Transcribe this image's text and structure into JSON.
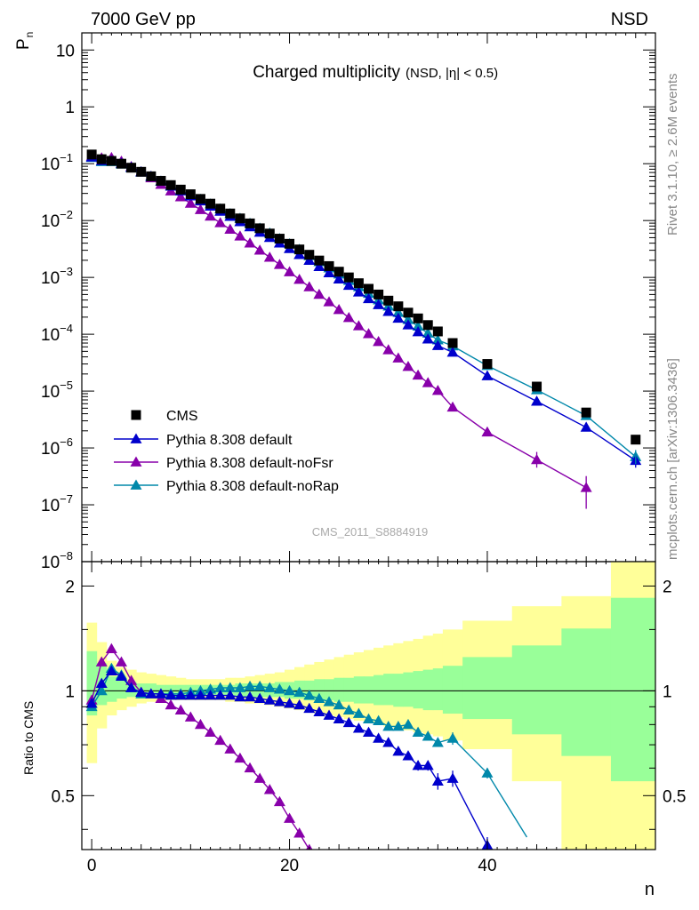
{
  "header": {
    "left": "7000 GeV pp",
    "right": "NSD"
  },
  "side": {
    "rivet": "Rivet 3.1.10, ≥ 2.6M events",
    "mcplots": "mcplots.cern.ch [arXiv:1306.3436]"
  },
  "colors": {
    "cms": "#000000",
    "default": "#0000cc",
    "noFsr": "#8800aa",
    "noRap": "#0088aa",
    "band_yellow": "#ffff99",
    "band_green": "#99ff99"
  },
  "chart_data": [
    {
      "type": "scatter",
      "title": "Charged multiplicity",
      "title_suffix": "(NSD, |η| < 0.5)",
      "ylabel": "P",
      "ylabel_sub": "n",
      "yscale": "log",
      "xlim": [
        -1,
        57
      ],
      "ylim": [
        1e-08,
        20
      ],
      "yticks": [
        "10",
        "1",
        "10^-1",
        "10^-2",
        "10^-3",
        "10^-4",
        "10^-5",
        "10^-6",
        "10^-7",
        "10^-8"
      ],
      "watermark": "CMS_2011_S8884919",
      "legend_position": "bottom-left",
      "series": [
        {
          "name": "CMS",
          "key": "cms",
          "marker": "square",
          "x": [
            0,
            1,
            2,
            3,
            4,
            5,
            6,
            7,
            8,
            9,
            10,
            11,
            12,
            13,
            14,
            15,
            16,
            17,
            18,
            19,
            20,
            21,
            22,
            23,
            24,
            25,
            26,
            27,
            28,
            29,
            30,
            31,
            32,
            33,
            34,
            35,
            36.5,
            40,
            45,
            50,
            55
          ],
          "y": [
            0.145,
            0.12,
            0.112,
            0.1,
            0.085,
            0.072,
            0.06,
            0.05,
            0.042,
            0.035,
            0.029,
            0.024,
            0.0198,
            0.0162,
            0.0133,
            0.0109,
            0.0089,
            0.0073,
            0.0059,
            0.0048,
            0.0039,
            0.0031,
            0.0025,
            0.00198,
            0.00158,
            0.00126,
            0.001,
            0.00079,
            0.00063,
            0.0005,
            0.00039,
            0.00031,
            0.00024,
            0.00019,
            0.000145,
            0.000112,
            7e-05,
            3e-05,
            1.2e-05,
            4.2e-06,
            1.4e-06
          ]
        },
        {
          "name": "Pythia 8.308 default",
          "key": "default",
          "marker": "triangle",
          "x": [
            0,
            1,
            2,
            3,
            4,
            5,
            6,
            7,
            8,
            9,
            10,
            11,
            12,
            13,
            14,
            15,
            16,
            17,
            18,
            19,
            20,
            21,
            22,
            23,
            24,
            25,
            26,
            27,
            28,
            29,
            30,
            31,
            32,
            33,
            34,
            35,
            36.5,
            40,
            45,
            50,
            55
          ],
          "y": [
            0.13,
            0.112,
            0.112,
            0.101,
            0.086,
            0.072,
            0.06,
            0.049,
            0.04,
            0.033,
            0.027,
            0.022,
            0.0178,
            0.0145,
            0.0118,
            0.0095,
            0.0077,
            0.0062,
            0.005,
            0.004,
            0.0032,
            0.0025,
            0.00198,
            0.00154,
            0.0012,
            0.00093,
            0.00072,
            0.00055,
            0.00042,
            0.00033,
            0.00025,
            0.00019,
            0.000145,
            0.00011,
            8.2e-05,
            6.3e-05,
            4.8e-05,
            1.85e-05,
            6.6e-06,
            2.3e-06,
            6e-07
          ]
        },
        {
          "name": "Pythia 8.308 default-noFsr",
          "key": "noFsr",
          "marker": "triangle",
          "x": [
            0,
            1,
            2,
            3,
            4,
            5,
            6,
            7,
            8,
            9,
            10,
            11,
            12,
            13,
            14,
            15,
            16,
            17,
            18,
            19,
            20,
            21,
            22,
            23,
            24,
            25,
            26,
            27,
            28,
            29,
            30,
            31,
            32,
            33,
            34,
            35,
            36.5,
            40,
            45,
            50,
            55
          ],
          "y": [
            0.135,
            0.126,
            0.128,
            0.11,
            0.089,
            0.071,
            0.056,
            0.043,
            0.033,
            0.026,
            0.02,
            0.0155,
            0.0119,
            0.0091,
            0.007,
            0.0053,
            0.004,
            0.003,
            0.00225,
            0.00168,
            0.00125,
            0.00092,
            0.00068,
            0.0005,
            0.00037,
            0.00027,
            0.000195,
            0.00014,
            0.000102,
            7.4e-05,
            5.3e-05,
            3.8e-05,
            2.7e-05,
            1.9e-05,
            1.4e-05,
            1.02e-05,
            5.2e-06,
            1.9e-06,
            6.2e-07,
            2e-07,
            null
          ]
        },
        {
          "name": "Pythia 8.308 default-noRap",
          "key": "noRap",
          "marker": "triangle",
          "x": [
            0,
            1,
            2,
            3,
            4,
            5,
            6,
            7,
            8,
            9,
            10,
            11,
            12,
            13,
            14,
            15,
            16,
            17,
            18,
            19,
            20,
            21,
            22,
            23,
            24,
            25,
            26,
            27,
            28,
            29,
            30,
            31,
            32,
            33,
            34,
            35,
            36.5,
            40,
            45,
            50,
            55
          ],
          "y": [
            0.128,
            0.108,
            0.108,
            0.098,
            0.084,
            0.071,
            0.059,
            0.049,
            0.041,
            0.034,
            0.028,
            0.0235,
            0.0195,
            0.016,
            0.0132,
            0.0109,
            0.0089,
            0.0073,
            0.006,
            0.0048,
            0.0039,
            0.0031,
            0.0024,
            0.00188,
            0.00146,
            0.00114,
            0.00088,
            0.00068,
            0.00052,
            0.0004,
            0.00031,
            0.00024,
            0.00018,
            0.000138,
            0.000104,
            7.9e-05,
            6.2e-05,
            2.8e-05,
            1.05e-05,
            3.7e-06,
            7e-07
          ]
        }
      ]
    },
    {
      "type": "line",
      "ylabel": "Ratio to CMS",
      "xlabel": "n",
      "xlim": [
        -1,
        57
      ],
      "ylim": [
        0.35,
        2.35
      ],
      "xticks": [
        0,
        20,
        40
      ],
      "yticks": [
        0.5,
        1,
        2
      ],
      "band_edges": [
        -0.5,
        0.5,
        1.5,
        2.5,
        3.5,
        4.5,
        5.5,
        6.5,
        7.5,
        8.5,
        9.5,
        10.5,
        11.5,
        12.5,
        13.5,
        14.5,
        15.5,
        16.5,
        17.5,
        18.5,
        19.5,
        20.5,
        21.5,
        22.5,
        23.5,
        24.5,
        25.5,
        26.5,
        27.5,
        28.5,
        29.5,
        30.5,
        31.5,
        32.5,
        33.5,
        34.5,
        35.5,
        37.5,
        42.5,
        47.5,
        52.5,
        57.5
      ],
      "band_yellow": [
        [
          0.62,
          1.57
        ],
        [
          0.78,
          1.38
        ],
        [
          0.85,
          1.22
        ],
        [
          0.88,
          1.17
        ],
        [
          0.9,
          1.15
        ],
        [
          0.92,
          1.13
        ],
        [
          0.93,
          1.12
        ],
        [
          0.93,
          1.11
        ],
        [
          0.94,
          1.1
        ],
        [
          0.94,
          1.09
        ],
        [
          0.94,
          1.08
        ],
        [
          0.94,
          1.08
        ],
        [
          0.94,
          1.08
        ],
        [
          0.94,
          1.08
        ],
        [
          0.93,
          1.09
        ],
        [
          0.93,
          1.09
        ],
        [
          0.92,
          1.1
        ],
        [
          0.92,
          1.11
        ],
        [
          0.91,
          1.12
        ],
        [
          0.9,
          1.13
        ],
        [
          0.89,
          1.15
        ],
        [
          0.88,
          1.17
        ],
        [
          0.87,
          1.19
        ],
        [
          0.86,
          1.21
        ],
        [
          0.85,
          1.23
        ],
        [
          0.84,
          1.25
        ],
        [
          0.83,
          1.27
        ],
        [
          0.82,
          1.29
        ],
        [
          0.81,
          1.31
        ],
        [
          0.8,
          1.33
        ],
        [
          0.79,
          1.35
        ],
        [
          0.78,
          1.37
        ],
        [
          0.77,
          1.39
        ],
        [
          0.76,
          1.41
        ],
        [
          0.75,
          1.44
        ],
        [
          0.74,
          1.46
        ],
        [
          0.72,
          1.5
        ],
        [
          0.68,
          1.59
        ],
        [
          0.55,
          1.75
        ],
        [
          0.35,
          1.87
        ],
        [
          0.35,
          2.35
        ]
      ],
      "band_green": [
        [
          0.85,
          1.3
        ],
        [
          0.91,
          1.2
        ],
        [
          0.93,
          1.1
        ],
        [
          0.95,
          1.08
        ],
        [
          0.96,
          1.06
        ],
        [
          0.97,
          1.05
        ],
        [
          0.97,
          1.05
        ],
        [
          0.97,
          1.04
        ],
        [
          0.97,
          1.04
        ],
        [
          0.97,
          1.04
        ],
        [
          0.97,
          1.04
        ],
        [
          0.97,
          1.04
        ],
        [
          0.97,
          1.04
        ],
        [
          0.97,
          1.04
        ],
        [
          0.97,
          1.04
        ],
        [
          0.96,
          1.05
        ],
        [
          0.96,
          1.05
        ],
        [
          0.96,
          1.05
        ],
        [
          0.96,
          1.05
        ],
        [
          0.96,
          1.06
        ],
        [
          0.95,
          1.06
        ],
        [
          0.95,
          1.07
        ],
        [
          0.94,
          1.07
        ],
        [
          0.94,
          1.08
        ],
        [
          0.94,
          1.08
        ],
        [
          0.93,
          1.09
        ],
        [
          0.93,
          1.09
        ],
        [
          0.92,
          1.1
        ],
        [
          0.92,
          1.1
        ],
        [
          0.91,
          1.11
        ],
        [
          0.91,
          1.12
        ],
        [
          0.9,
          1.12
        ],
        [
          0.9,
          1.13
        ],
        [
          0.89,
          1.14
        ],
        [
          0.88,
          1.15
        ],
        [
          0.88,
          1.16
        ],
        [
          0.86,
          1.18
        ],
        [
          0.83,
          1.25
        ],
        [
          0.75,
          1.35
        ],
        [
          0.65,
          1.51
        ],
        [
          0.55,
          1.85
        ]
      ],
      "series": [
        {
          "key": "default",
          "x": [
            0,
            1,
            2,
            3,
            4,
            5,
            6,
            7,
            8,
            9,
            10,
            11,
            12,
            13,
            14,
            15,
            16,
            17,
            18,
            19,
            20,
            21,
            22,
            23,
            24,
            25,
            26,
            27,
            28,
            29,
            30,
            31,
            32,
            33,
            34,
            35,
            36.5,
            40
          ],
          "y": [
            0.92,
            1.05,
            1.14,
            1.1,
            1.02,
            0.99,
            0.98,
            0.98,
            0.97,
            0.97,
            0.97,
            0.97,
            0.97,
            0.97,
            0.97,
            0.96,
            0.96,
            0.95,
            0.94,
            0.93,
            0.92,
            0.91,
            0.89,
            0.87,
            0.85,
            0.83,
            0.81,
            0.78,
            0.76,
            0.73,
            0.71,
            0.67,
            0.65,
            0.61,
            0.61,
            0.55,
            0.56,
            0.36
          ],
          "err": [
            0.02,
            0.02,
            0.02,
            0.02,
            0.01,
            0.01,
            0.01,
            0.01,
            0.01,
            0.01,
            0.01,
            0.01,
            0.01,
            0.01,
            0.01,
            0.01,
            0.01,
            0.01,
            0.01,
            0.01,
            0.01,
            0.01,
            0.01,
            0.01,
            0.01,
            0.01,
            0.01,
            0.01,
            0.01,
            0.01,
            0.01,
            0.01,
            0.015,
            0.02,
            0.02,
            0.03,
            0.03,
            0.02
          ]
        },
        {
          "key": "noFsr",
          "x": [
            0,
            1,
            2,
            3,
            4,
            5,
            6,
            7,
            8,
            9,
            10,
            11,
            12,
            13,
            14,
            15,
            16,
            17,
            18,
            19,
            20,
            21,
            22
          ],
          "y": [
            0.94,
            1.21,
            1.32,
            1.21,
            1.07,
            0.99,
            0.98,
            0.95,
            0.91,
            0.88,
            0.84,
            0.8,
            0.76,
            0.72,
            0.68,
            0.64,
            0.6,
            0.56,
            0.52,
            0.48,
            0.43,
            0.39,
            0.35
          ],
          "err": [
            0.02,
            0.02,
            0.02,
            0.02,
            0.01,
            0.01,
            0.01,
            0.01,
            0.01,
            0.01,
            0.01,
            0.01,
            0.01,
            0.01,
            0.01,
            0.01,
            0.01,
            0.01,
            0.01,
            0.01,
            0.01,
            0.01,
            0.01
          ]
        },
        {
          "key": "noRap",
          "x": [
            0,
            1,
            2,
            3,
            4,
            5,
            6,
            7,
            8,
            9,
            10,
            11,
            12,
            13,
            14,
            15,
            16,
            17,
            18,
            19,
            20,
            21,
            22,
            23,
            24,
            25,
            26,
            27,
            28,
            29,
            30,
            31,
            32,
            33,
            34,
            35,
            36.5,
            40
          ],
          "y": [
            0.9,
            1.0,
            1.16,
            1.11,
            1.02,
            0.98,
            0.98,
            0.98,
            0.98,
            0.98,
            0.99,
            1.0,
            1.01,
            1.02,
            1.02,
            1.02,
            1.03,
            1.03,
            1.02,
            1.01,
            1.0,
            0.99,
            0.97,
            0.95,
            0.93,
            0.91,
            0.88,
            0.86,
            0.83,
            0.82,
            0.79,
            0.79,
            0.8,
            0.76,
            0.74,
            0.71,
            0.73,
            0.58
          ],
          "err": [
            0.02,
            0.02,
            0.02,
            0.02,
            0.01,
            0.01,
            0.01,
            0.01,
            0.01,
            0.01,
            0.01,
            0.01,
            0.01,
            0.01,
            0.01,
            0.01,
            0.01,
            0.01,
            0.01,
            0.01,
            0.01,
            0.01,
            0.01,
            0.01,
            0.01,
            0.01,
            0.01,
            0.01,
            0.01,
            0.015,
            0.02,
            0.02,
            0.02,
            0.02,
            0.02,
            0.02,
            0.03,
            0.02
          ]
        }
      ]
    }
  ]
}
